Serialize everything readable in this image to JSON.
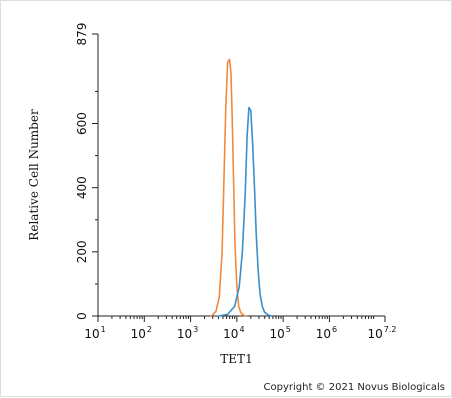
{
  "chart_data": {
    "type": "line",
    "title": "",
    "xlabel": "TET1",
    "ylabel": "Relative Cell Number",
    "x_scale": "log",
    "xlim": [
      1,
      7.2
    ],
    "ylim": [
      0,
      879
    ],
    "x_ticks": [
      {
        "base": "10",
        "exp": "1",
        "value": 1
      },
      {
        "base": "10",
        "exp": "2",
        "value": 2
      },
      {
        "base": "10",
        "exp": "3",
        "value": 3
      },
      {
        "base": "10",
        "exp": "4",
        "value": 4
      },
      {
        "base": "10",
        "exp": "5",
        "value": 5
      },
      {
        "base": "10",
        "exp": "6",
        "value": 6
      },
      {
        "base": "10",
        "exp": "7.2",
        "value": 7.2
      }
    ],
    "y_ticks": [
      {
        "label": "0",
        "value": 0
      },
      {
        "label": "200",
        "value": 200
      },
      {
        "label": "400",
        "value": 400
      },
      {
        "label": "600",
        "value": 600
      },
      {
        "label": "879",
        "value": 879
      }
    ],
    "grid": false,
    "series": [
      {
        "color": "#f08a3c",
        "x": [
          3.45,
          3.55,
          3.62,
          3.68,
          3.72,
          3.76,
          3.8,
          3.84,
          3.87,
          3.9,
          3.93,
          3.96,
          4.0,
          4.04,
          4.08,
          4.12,
          4.16,
          4.2
        ],
        "y": [
          0,
          15,
          60,
          200,
          420,
          650,
          790,
          800,
          760,
          620,
          420,
          220,
          90,
          30,
          12,
          5,
          2,
          0
        ]
      },
      {
        "color": "#3a8ec9",
        "x": [
          3.6,
          3.8,
          3.95,
          4.05,
          4.12,
          4.18,
          4.22,
          4.26,
          4.3,
          4.34,
          4.38,
          4.42,
          4.46,
          4.5,
          4.55,
          4.6,
          4.68,
          4.75
        ],
        "y": [
          0,
          5,
          30,
          90,
          200,
          380,
          560,
          650,
          640,
          540,
          400,
          250,
          140,
          70,
          30,
          12,
          3,
          0
        ]
      }
    ]
  },
  "footer": {
    "copyright": "Copyright © 2021 Novus Biologicals"
  }
}
